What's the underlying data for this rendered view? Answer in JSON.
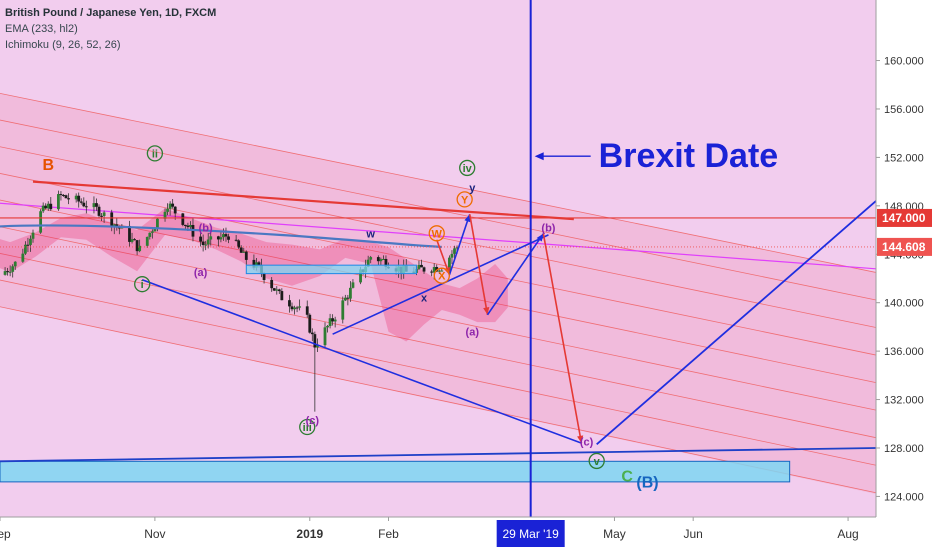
{
  "chart_data": {
    "type": "candlestick",
    "symbol_line": "British Pound / Japanese Yen, 1D, FXCM",
    "indicators": [
      "EMA (233, hl2)",
      "Ichimoku (9, 26, 52, 26)"
    ],
    "y_axis": {
      "ticks": [
        124.0,
        128.0,
        132.0,
        136.0,
        140.0,
        144.0,
        148.0,
        152.0,
        156.0,
        160.0
      ],
      "labels": [
        "124.000",
        "128.000",
        "132.000",
        "136.000",
        "140.000",
        "144.000",
        "148.000",
        "152.000",
        "156.000",
        "160.000"
      ],
      "range": [
        122.3,
        165.0
      ]
    },
    "x_axis": {
      "labels": [
        {
          "text": "Sep",
          "date": "2018-09-01",
          "bold": false
        },
        {
          "text": "Nov",
          "date": "2018-11-01",
          "bold": false
        },
        {
          "text": "2019",
          "date": "2019-01-01",
          "bold": true
        },
        {
          "text": "Feb",
          "date": "2019-02-01",
          "bold": false
        },
        {
          "text": "May",
          "date": "2019-05-01",
          "bold": false
        },
        {
          "text": "Jun",
          "date": "2019-06-01",
          "bold": false
        },
        {
          "text": "Aug",
          "date": "2019-08-01",
          "bold": false
        }
      ],
      "highlight": {
        "text": "29 Mar '19",
        "date": "2019-03-29"
      },
      "range": [
        "2018-09-01",
        "2019-08-12"
      ]
    },
    "price_tags": [
      {
        "value": 147.0,
        "label": "147.000",
        "color": "#e53935"
      },
      {
        "value": 144.608,
        "label": "144.608",
        "color": "#ef5350"
      }
    ],
    "annotation_text": "Brexit Date",
    "wave_labels": [
      {
        "text": "B",
        "date": "2018-09-20",
        "y": 151.2,
        "color": "#e65100",
        "circled": false
      },
      {
        "text": "ii",
        "date": "2018-11-01",
        "y": 152.0,
        "color": "#2e7d32",
        "circled": true
      },
      {
        "text": "i",
        "date": "2018-10-27",
        "y": 141.2,
        "color": "#2e7d32",
        "circled": true
      },
      {
        "text": "(b)",
        "date": "2018-11-21",
        "y": 145.9,
        "color": "#8e24aa",
        "circled": false
      },
      {
        "text": "(a)",
        "date": "2018-11-19",
        "y": 142.2,
        "color": "#8e24aa",
        "circled": false
      },
      {
        "text": "w",
        "date": "2019-01-25",
        "y": 145.4,
        "color": "#1a237e",
        "circled": false
      },
      {
        "text": "W",
        "date": "2019-02-20",
        "y": 145.4,
        "color": "#ef6c00",
        "circled": true
      },
      {
        "text": "iv",
        "date": "2019-03-04",
        "y": 150.8,
        "color": "#2e7d32",
        "circled": true
      },
      {
        "text": "Y",
        "date": "2019-03-03",
        "y": 148.2,
        "color": "#ef6c00",
        "circled": true
      },
      {
        "text": "y",
        "date": "2019-03-06",
        "y": 149.2,
        "color": "#1a237e",
        "circled": false
      },
      {
        "text": "X",
        "date": "2019-02-22",
        "y": 141.9,
        "color": "#ef6c00",
        "circled": true
      },
      {
        "text": "x",
        "date": "2019-02-15",
        "y": 140.1,
        "color": "#1a237e",
        "circled": false
      },
      {
        "text": "(b)",
        "date": "2019-04-05",
        "y": 145.9,
        "color": "#8e24aa",
        "circled": false
      },
      {
        "text": "(a)",
        "date": "2019-03-06",
        "y": 137.3,
        "color": "#8e24aa",
        "circled": false
      },
      {
        "text": "iii",
        "date": "2018-12-31",
        "y": 129.4,
        "color": "#2e7d32",
        "circled": true
      },
      {
        "text": "(c)",
        "date": "2019-01-02",
        "y": 130.0,
        "color": "#8e24aa",
        "circled": false
      },
      {
        "text": "(c)",
        "date": "2019-04-20",
        "y": 128.2,
        "color": "#8e24aa",
        "circled": false
      },
      {
        "text": "v",
        "date": "2019-04-24",
        "y": 126.6,
        "color": "#2e7d32",
        "circled": true
      },
      {
        "text": "C",
        "date": "2019-05-06",
        "y": 125.5,
        "color": "#4caf50",
        "circled": false
      },
      {
        "text": "(B)",
        "date": "2019-05-14",
        "y": 125.0,
        "color": "#1565c0",
        "circled": false
      }
    ],
    "grid": false,
    "scale": "linear"
  }
}
